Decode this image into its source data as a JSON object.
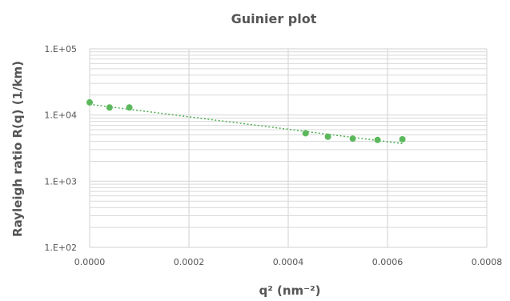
{
  "chart_data": {
    "type": "scatter",
    "title": "Guinier plot",
    "xlabel": "q² (nm⁻²)",
    "ylabel": "Rayleigh ratio R(q) (1/km)",
    "x_scale": "linear",
    "y_scale": "log",
    "xlim": [
      0,
      0.0008
    ],
    "ylim": [
      100,
      100000
    ],
    "x_ticks": [
      0,
      0.0002,
      0.0004,
      0.0006,
      0.0008
    ],
    "x_tick_labels": [
      "0.0000",
      "0.0002",
      "0.0004",
      "0.0006",
      "0.0008"
    ],
    "y_ticks": [
      100,
      1000,
      10000,
      100000
    ],
    "y_tick_labels": [
      "1.E+02",
      "1.E+03",
      "1.E+04",
      "1.E+05"
    ],
    "grid": true,
    "legend": "none",
    "series": [
      {
        "color": "#5cb85c",
        "points": [
          {
            "x": 0.0,
            "y": 15500
          },
          {
            "x": 4e-05,
            "y": 13000
          },
          {
            "x": 8e-05,
            "y": 13000
          },
          {
            "x": 0.000435,
            "y": 5300
          },
          {
            "x": 0.00048,
            "y": 4700
          },
          {
            "x": 0.00053,
            "y": 4400
          },
          {
            "x": 0.00058,
            "y": 4200
          },
          {
            "x": 0.00063,
            "y": 4300
          }
        ]
      }
    ],
    "trendline": {
      "type": "exponential",
      "style": "dotted",
      "color": "#4caf50",
      "from": {
        "x": 0.0,
        "y": 14500
      },
      "to": {
        "x": 0.00063,
        "y": 3700
      }
    }
  }
}
